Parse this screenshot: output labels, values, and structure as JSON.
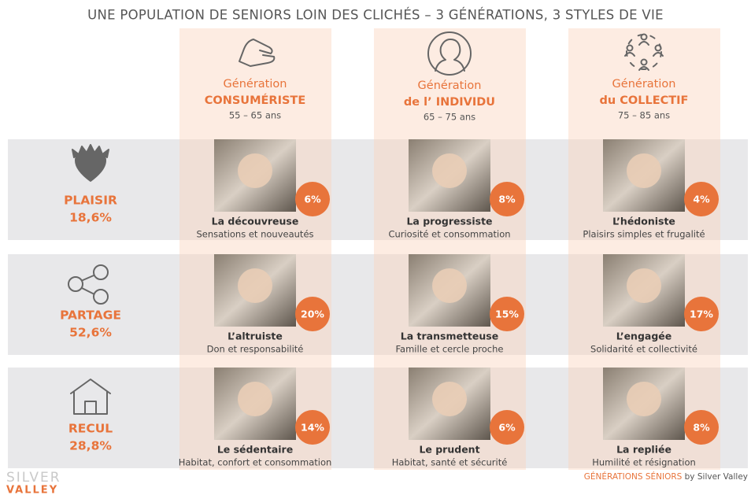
{
  "title": "UNE POPULATION DE SENIORS LOIN DES CLICHÉS – 3 GÉNÉRATIONS, 3 STYLES DE VIE",
  "generations": [
    {
      "label": "Génération",
      "name": "CONSUMÉRISTE",
      "ages": "55 – 65 ans"
    },
    {
      "label": "Génération",
      "name": "de l’ INDIVIDU",
      "ages": "65 – 75 ans"
    },
    {
      "label": "Génération",
      "name": "du COLLECTIF",
      "ages": "75 – 85 ans"
    }
  ],
  "styles": [
    {
      "name": "PLAISIR",
      "share": "18,6%"
    },
    {
      "name": "PARTAGE",
      "share": "52,6%"
    },
    {
      "name": "RECUL",
      "share": "28,8%"
    }
  ],
  "profiles": [
    [
      {
        "percent": "6%",
        "name": "La découvreuse",
        "description": "Sensations et nouveautés"
      },
      {
        "percent": "8%",
        "name": "La progressiste",
        "description": "Curiosité et consommation"
      },
      {
        "percent": "4%",
        "name": "L’hédoniste",
        "description": "Plaisirs simples et frugalité"
      }
    ],
    [
      {
        "percent": "20%",
        "name": "L’altruiste",
        "description": "Don et responsabilité"
      },
      {
        "percent": "15%",
        "name": "La transmetteuse",
        "description": "Famille et cercle proche"
      },
      {
        "percent": "17%",
        "name": "L’engagée",
        "description": "Solidarité et collectivité"
      }
    ],
    [
      {
        "percent": "14%",
        "name": "Le sédentaire",
        "description": "Habitat, confort et consommation"
      },
      {
        "percent": "6%",
        "name": "Le prudent",
        "description": "Habitat, santé et sécurité"
      },
      {
        "percent": "8%",
        "name": "La repliée",
        "description": "Humilité et résignation"
      }
    ]
  ],
  "footer": {
    "logo_top": "SILVER",
    "logo_bottom": "VALLEY",
    "credit_highlight": "GÉNÉRATIONS SÉNIORS",
    "credit": "by Silver Valley"
  }
}
